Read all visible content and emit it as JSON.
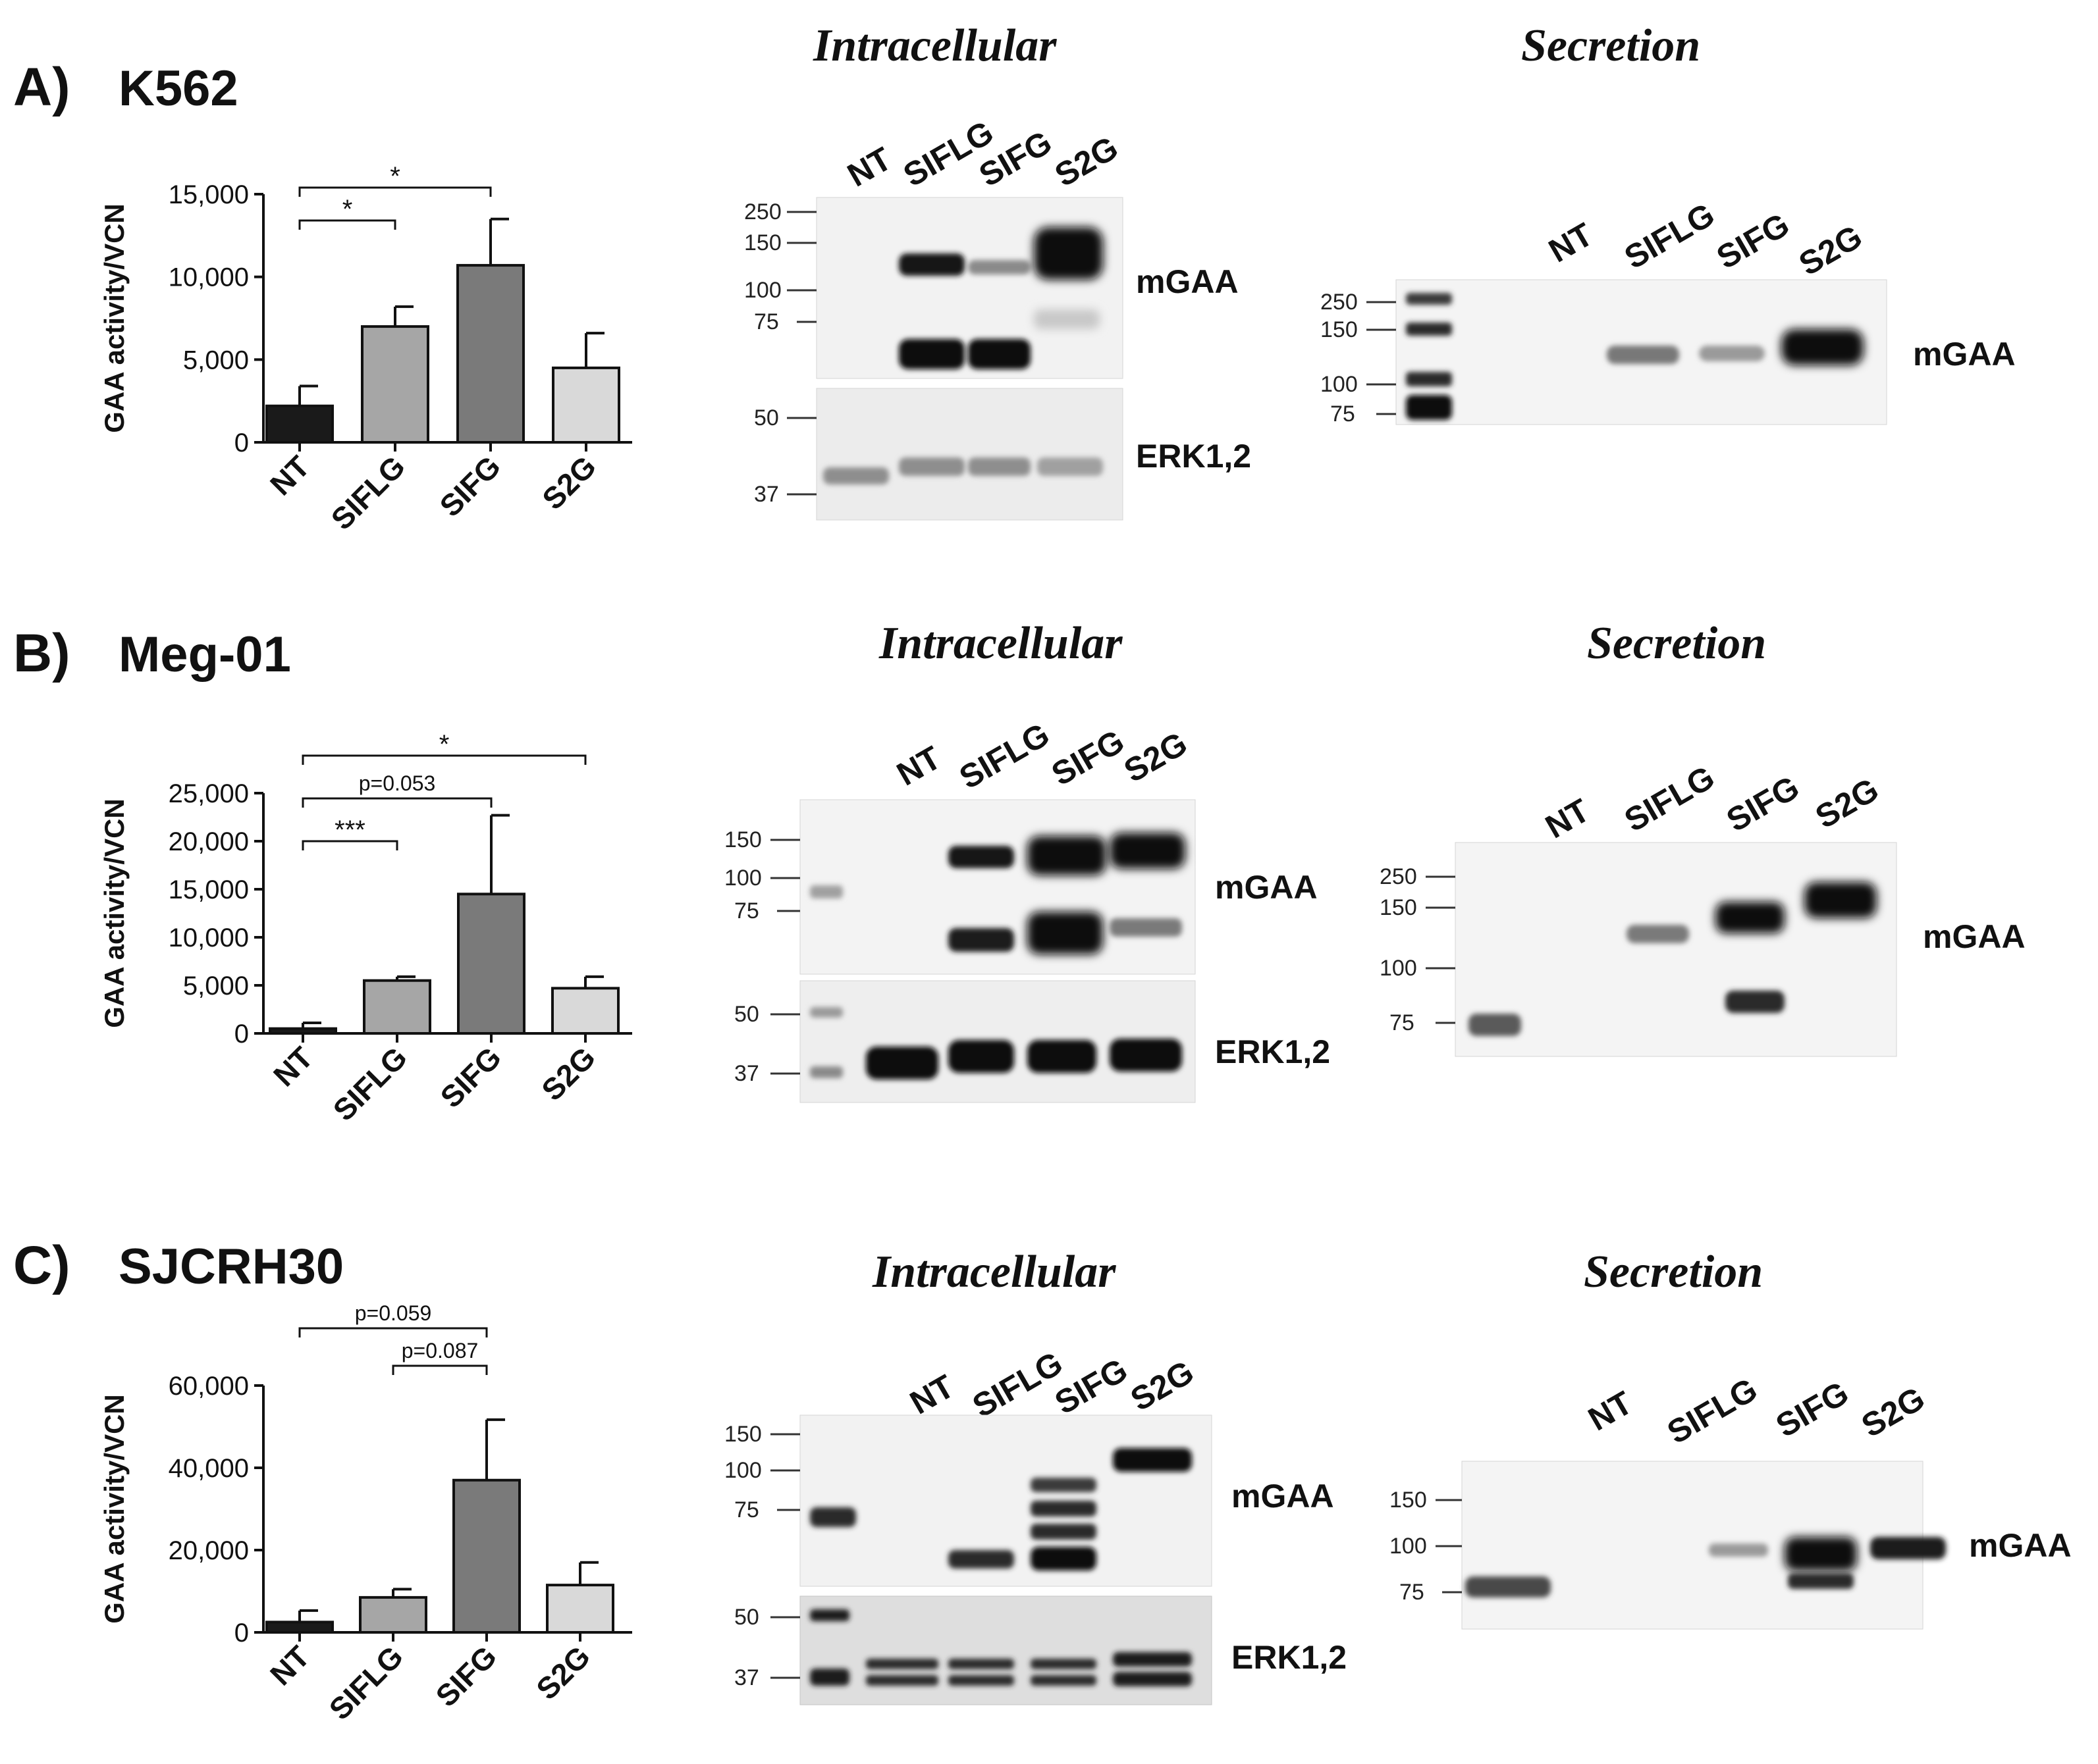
{
  "panels": [
    {
      "letter": "A)",
      "cell_line": "K562",
      "chart_data": {
        "type": "bar",
        "categories": [
          "NT",
          "SIFLG",
          "SIFG",
          "S2G"
        ],
        "values": [
          2200,
          7000,
          10700,
          4500
        ],
        "errors": [
          1200,
          1200,
          2800,
          2100
        ],
        "colors": [
          "#1a1a1a",
          "#a6a6a6",
          "#7a7a7a",
          "#d9d9d9"
        ],
        "xlabel": "",
        "ylabel": "GAA activity/VCN",
        "ylim": [
          0,
          15000
        ],
        "yticks": [
          0,
          5000,
          10000,
          15000
        ],
        "ytick_labels": [
          "0",
          "5,000",
          "10,000",
          "15,000"
        ],
        "grid": false,
        "significance": [
          {
            "from": 0,
            "to": 1,
            "level": 1,
            "label": "*"
          },
          {
            "from": 0,
            "to": 2,
            "level": 2,
            "label": "*"
          }
        ]
      },
      "intracellular": {
        "title": "Intracellular",
        "lanes": [
          "NT",
          "SIFLG",
          "SIFG",
          "S2G"
        ],
        "mgaa_label": "mGAA",
        "mgaa_markers": [
          "250",
          "150",
          "100",
          "75"
        ],
        "erk_label": "ERK1,2",
        "erk_markers": [
          "50",
          "37"
        ]
      },
      "secretion": {
        "title": "Secretion",
        "lanes": [
          "NT",
          "SIFLG",
          "SIFG",
          "S2G"
        ],
        "label": "mGAA",
        "markers": [
          "250",
          "150",
          "100",
          "75"
        ]
      }
    },
    {
      "letter": "B)",
      "cell_line": "Meg-01",
      "chart_data": {
        "type": "bar",
        "categories": [
          "NT",
          "SIFLG",
          "SIFG",
          "S2G"
        ],
        "values": [
          500,
          5500,
          14500,
          4700
        ],
        "errors": [
          600,
          400,
          8200,
          1200
        ],
        "colors": [
          "#1a1a1a",
          "#a6a6a6",
          "#7a7a7a",
          "#d9d9d9"
        ],
        "xlabel": "",
        "ylabel": "GAA activity/VCN",
        "ylim": [
          0,
          25000
        ],
        "yticks": [
          0,
          5000,
          10000,
          15000,
          20000,
          25000
        ],
        "ytick_labels": [
          "0",
          "5,000",
          "10,000",
          "15,000",
          "20,000",
          "25,000"
        ],
        "grid": false,
        "significance": [
          {
            "from": 0,
            "to": 1,
            "level": 1,
            "label": "***"
          },
          {
            "from": 0,
            "to": 2,
            "level": 2,
            "label": "p=0.053"
          },
          {
            "from": 0,
            "to": 3,
            "level": 3,
            "label": "*"
          }
        ]
      },
      "intracellular": {
        "title": "Intracellular",
        "lanes": [
          "NT",
          "SIFLG",
          "SIFG",
          "S2G"
        ],
        "mgaa_label": "mGAA",
        "mgaa_markers": [
          "150",
          "100",
          "75"
        ],
        "erk_label": "ERK1,2",
        "erk_markers": [
          "50",
          "37"
        ]
      },
      "secretion": {
        "title": "Secretion",
        "lanes": [
          "NT",
          "SIFLG",
          "SIFG",
          "S2G"
        ],
        "label": "mGAA",
        "markers": [
          "250",
          "150",
          "100",
          "75"
        ]
      }
    },
    {
      "letter": "C)",
      "cell_line": "SJCRH30",
      "chart_data": {
        "type": "bar",
        "categories": [
          "NT",
          "SIFLG",
          "SIFG",
          "S2G"
        ],
        "values": [
          2500,
          8500,
          37000,
          11500
        ],
        "errors": [
          2800,
          2000,
          14700,
          5500
        ],
        "colors": [
          "#1a1a1a",
          "#a6a6a6",
          "#7a7a7a",
          "#d9d9d9"
        ],
        "xlabel": "",
        "ylabel": "GAA activity/VCN",
        "ylim": [
          0,
          60000
        ],
        "yticks": [
          0,
          20000,
          40000,
          60000
        ],
        "ytick_labels": [
          "0",
          "20,000",
          "40,000",
          "60,000"
        ],
        "grid": false,
        "significance": [
          {
            "from": 1,
            "to": 2,
            "level": 1,
            "label": "p=0.087"
          },
          {
            "from": 0,
            "to": 2,
            "level": 2,
            "label": "p=0.059"
          }
        ]
      },
      "intracellular": {
        "title": "Intracellular",
        "lanes": [
          "NT",
          "SIFLG",
          "SIFG",
          "S2G"
        ],
        "mgaa_label": "mGAA",
        "mgaa_markers": [
          "150",
          "100",
          "75"
        ],
        "erk_label": "ERK1,2",
        "erk_markers": [
          "50",
          "37"
        ]
      },
      "secretion": {
        "title": "Secretion",
        "lanes": [
          "NT",
          "SIFLG",
          "SIFG",
          "S2G"
        ],
        "label": "mGAA",
        "markers": [
          "150",
          "100",
          "75"
        ]
      }
    }
  ]
}
